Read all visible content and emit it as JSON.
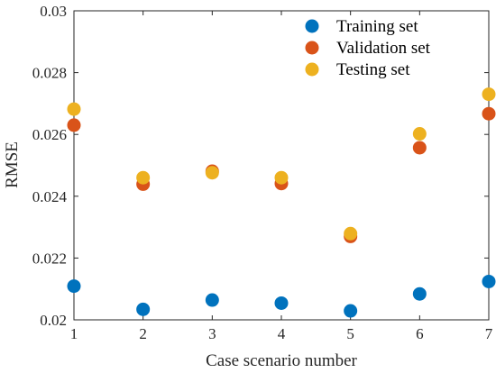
{
  "chart_data": {
    "type": "scatter",
    "xlabel": "Case scenario number",
    "ylabel": "RMSE",
    "xlim": [
      1,
      7
    ],
    "ylim": [
      0.02,
      0.03
    ],
    "x_ticks": [
      "1",
      "2",
      "3",
      "4",
      "5",
      "6",
      "7"
    ],
    "y_ticks": [
      "0.02",
      "0.022",
      "0.024",
      "0.026",
      "0.028",
      "0.03"
    ],
    "legend_position": "top-right",
    "grid": false,
    "x": [
      1,
      2,
      3,
      4,
      5,
      6,
      7
    ],
    "series": [
      {
        "name": "Training set",
        "color": "#0072BD",
        "values": [
          0.02109,
          0.02034,
          0.02064,
          0.02054,
          0.02029,
          0.02084,
          0.02124
        ]
      },
      {
        "name": "Validation set",
        "color": "#D95319",
        "values": [
          0.0263,
          0.02439,
          0.02481,
          0.02441,
          0.0227,
          0.02557,
          0.02667
        ]
      },
      {
        "name": "Testing set",
        "color": "#EDB120",
        "values": [
          0.02682,
          0.0246,
          0.02476,
          0.0246,
          0.02279,
          0.02602,
          0.0273
        ]
      }
    ]
  }
}
